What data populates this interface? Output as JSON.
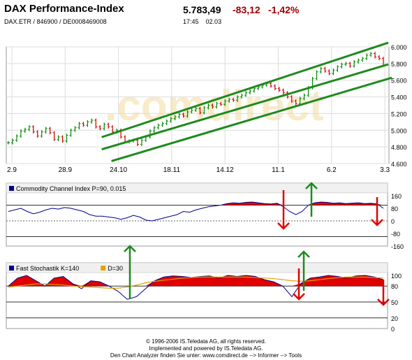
{
  "header": {
    "title": "DAX Performance-Index",
    "price": "5.783,49",
    "change": "-83,12",
    "change_pct": "-1,42%",
    "identifiers": "DAX.ETR  /  846900  /  DE0008469008",
    "time": "17:45",
    "date": "02.03"
  },
  "colors": {
    "negative": "#a00000",
    "price_up": "#008800",
    "price_down": "#cc0000",
    "channel": "#1e8a1e",
    "cci_line": "#00008b",
    "fill_red": "#e00000",
    "signal": "#e8a000",
    "up_arrow": "#1e8a1e",
    "down_arrow": "#e00000"
  },
  "chart_data": [
    {
      "type": "line",
      "title": "",
      "xlabel": "",
      "ylabel": "",
      "x_tick_labels": [
        "2.9",
        "28.9",
        "24.10",
        "18.11",
        "14.12",
        "11.1",
        "6.2",
        "3.3"
      ],
      "y_tick_labels": [
        "6.000",
        "5.800",
        "5.600",
        "5.400",
        "5.200",
        "5.000",
        "4.800",
        "4.600"
      ],
      "ylim": [
        4600,
        6000
      ],
      "grid": true,
      "series": [
        {
          "values": [
            4850,
            4880,
            4930,
            4990,
            5010,
            5040,
            4980,
            4930,
            4980,
            5020,
            4970,
            4890,
            4920,
            4870,
            4940,
            5000,
            5030,
            5080,
            5060,
            5100,
            5120,
            5040,
            5020,
            5070,
            5040,
            4980,
            5000,
            4920,
            4860,
            4870,
            4880,
            4830,
            4880,
            4920,
            4990,
            5030,
            5060,
            5080,
            5110,
            5140,
            5160,
            5190,
            5170,
            5220,
            5240,
            5260,
            5210,
            5270,
            5300,
            5280,
            5320,
            5310,
            5350,
            5370,
            5360,
            5400,
            5420,
            5450,
            5470,
            5500,
            5520,
            5540,
            5560,
            5530,
            5500,
            5480,
            5450,
            5400,
            5350,
            5320,
            5380,
            5420,
            5510,
            5620,
            5700,
            5740,
            5710,
            5680,
            5720,
            5760,
            5790,
            5800,
            5770,
            5820,
            5840,
            5860,
            5900,
            5920,
            5880,
            5860,
            5783
          ]
        }
      ],
      "annotations": [
        {
          "type": "trend_channel",
          "lines": [
            {
              "from": {
                "x": "24.10",
                "y": 4950
              },
              "to": {
                "x": "3.3",
                "y": 6050
              }
            },
            {
              "from": {
                "x": "24.10",
                "y": 4770
              },
              "to": {
                "x": "3.3",
                "y": 5790
              }
            },
            {
              "from": {
                "x": "24.10",
                "y": 4630
              },
              "to": {
                "x": "3.3",
                "y": 5630
              }
            }
          ]
        }
      ]
    },
    {
      "type": "area",
      "title": "Commodity Channel Index P=90, 0.015",
      "y_tick_labels": [
        "160",
        "80",
        "0",
        "-80",
        "-160"
      ],
      "ylim": [
        -160,
        160
      ],
      "reference_lines": [
        100,
        -100
      ],
      "legend": [
        "Commodity Channel Index P=90, 0.015"
      ],
      "series": [
        {
          "name": "Commodity Channel Index P=90, 0.015",
          "values": [
            60,
            70,
            80,
            60,
            45,
            55,
            70,
            80,
            75,
            85,
            80,
            70,
            60,
            40,
            30,
            30,
            25,
            20,
            10,
            20,
            35,
            25,
            5,
            0,
            10,
            20,
            30,
            40,
            60,
            55,
            70,
            80,
            90,
            95,
            100,
            110,
            115,
            112,
            118,
            120,
            115,
            110,
            108,
            112,
            90,
            60,
            40,
            60,
            100,
            115,
            120,
            118,
            112,
            115,
            110,
            113,
            115,
            110,
            112,
            108,
            80
          ]
        }
      ]
    },
    {
      "type": "area",
      "title": "Fast Stochastik K=140",
      "y_tick_labels": [
        "100",
        "80",
        "50",
        "20",
        "0"
      ],
      "ylim": [
        0,
        100
      ],
      "reference_lines": [
        80,
        50,
        20
      ],
      "legend": [
        "Fast Stochastik K=140",
        "D=30"
      ],
      "series": [
        {
          "name": "Fast Stochastik K=140",
          "values": [
            80,
            95,
            100,
            90,
            80,
            95,
            98,
            85,
            75,
            90,
            88,
            80,
            70,
            55,
            60,
            75,
            90,
            97,
            99,
            98,
            96,
            98,
            99,
            95,
            100,
            98,
            100,
            98,
            92,
            88,
            80,
            60,
            85,
            95,
            97,
            100,
            98,
            95,
            99,
            100,
            97,
            92
          ]
        },
        {
          "name": "D=30",
          "values": [
            78,
            80,
            82,
            84,
            84,
            83,
            82,
            80,
            79,
            78,
            77,
            76,
            76,
            78,
            82,
            86,
            89,
            91,
            93,
            95,
            96,
            97,
            97,
            97,
            97,
            97,
            97,
            96,
            95,
            94,
            92,
            90,
            89,
            90,
            92,
            94,
            96,
            97,
            97,
            97,
            96,
            95
          ]
        }
      ]
    }
  ],
  "watermark": ".comdirect",
  "footer": {
    "line1": "© 1996-2006 IS.Teledata AG, all rights reserved.",
    "line2": "Implemented and powered by IS.Teledata AG.",
    "line3": "Den Chart Analyzer finden Sie unter: www.comdirect.de --> Informer --> Tools"
  }
}
